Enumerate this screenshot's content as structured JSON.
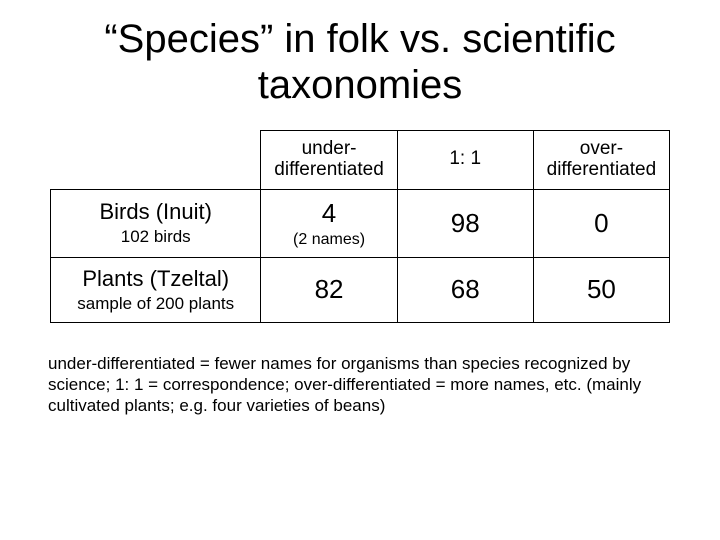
{
  "title": "“Species” in folk vs. scientific taxonomies",
  "table": {
    "type": "table",
    "columns": [
      {
        "label_top": "under-",
        "label_bot": "differentiated"
      },
      {
        "label_top": "1: 1",
        "label_bot": ""
      },
      {
        "label_top": "over-",
        "label_bot": "differentiated"
      }
    ],
    "rows": [
      {
        "head_main": "Birds (Inuit)",
        "head_sub": "102 birds",
        "cells": [
          {
            "value": "4",
            "sub": "(2 names)"
          },
          {
            "value": "98",
            "sub": ""
          },
          {
            "value": "0",
            "sub": ""
          }
        ]
      },
      {
        "head_main": "Plants (Tzeltal)",
        "head_sub": "sample of 200 plants",
        "cells": [
          {
            "value": "82",
            "sub": ""
          },
          {
            "value": "68",
            "sub": ""
          },
          {
            "value": "50",
            "sub": ""
          }
        ]
      }
    ],
    "border_color": "#000000",
    "background_color": "#ffffff",
    "header_fontsize": 19,
    "rowhead_main_fontsize": 22,
    "rowhead_sub_fontsize": 17,
    "cell_fontsize": 26
  },
  "footnote": "under-differentiated = fewer names for organisms than species recognized by science; 1: 1 = correspondence; over-differentiated = more names, etc. (mainly cultivated plants; e.g. four varieties of beans)",
  "colors": {
    "text": "#000000",
    "background": "#ffffff"
  },
  "title_fontsize": 40,
  "footnote_fontsize": 17
}
